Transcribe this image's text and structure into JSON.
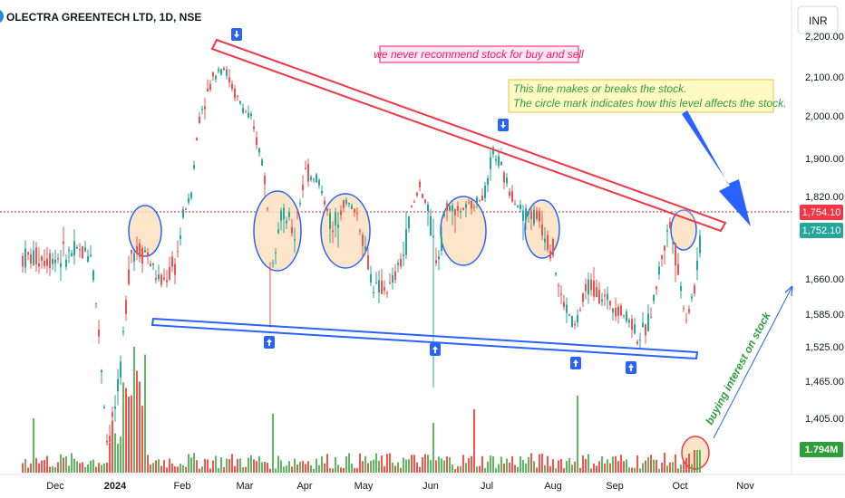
{
  "header": {
    "symbol_label": "OLECTRA GREENTECH LTD, 1D, NSE"
  },
  "currency_label": "INR",
  "annotations": {
    "disclaimer": "we never recommend stock for buy and sell",
    "note_line1": "This line makes or breaks the stock.",
    "note_line2": "The circle mark indicates how this level affects the stock.",
    "buying_interest": "buying interest on stock"
  },
  "badges": {
    "resistance_price": "1,754.10",
    "last_price": "1,752.10",
    "volume": "1.794M"
  },
  "colors": {
    "up": "#26a69a",
    "down": "#ef5350",
    "vol_up": "#4caf50",
    "vol_down": "#f44336",
    "resistance": "#f23645",
    "support": "#2962ff",
    "circle_fill": "#fbe1bf",
    "note_bg": "#fff9c4"
  },
  "chart_data": {
    "type": "candlestick",
    "title": "OLECTRA GREENTECH LTD, 1D, NSE",
    "y_axis": {
      "ticks": [
        "2,200.00",
        "2,100.00",
        "2,000.00",
        "1,900.00",
        "1,820.00",
        "1,660.00",
        "1,585.00",
        "1,525.00",
        "1,465.00",
        "1,405.00"
      ],
      "ylim": [
        1360,
        2200
      ]
    },
    "x_axis": {
      "ticks": [
        "Dec",
        "2024",
        "Feb",
        "Mar",
        "Apr",
        "May",
        "Jun",
        "Jul",
        "Aug",
        "Sep",
        "Oct",
        "Nov"
      ]
    },
    "grid": false,
    "horizontal_level": 1754.1,
    "trendlines": [
      {
        "name": "resistance",
        "points": [
          [
            "2024-02-12",
            2165
          ],
          [
            "2024-10-18",
            1754
          ]
        ]
      },
      {
        "name": "support",
        "points": [
          [
            "2023-12-28",
            1572
          ],
          [
            "2024-10-14",
            1518
          ]
        ]
      }
    ],
    "price_path": [
      [
        "2023-12-01",
        1690
      ],
      [
        "2023-12-20",
        1700
      ],
      [
        "2023-12-28",
        1360
      ],
      [
        "2024-01-03",
        1460
      ],
      [
        "2024-01-08",
        1700
      ],
      [
        "2024-01-15",
        1700
      ],
      [
        "2024-01-22",
        1650
      ],
      [
        "2024-01-29",
        1680
      ],
      [
        "2024-02-05",
        1820
      ],
      [
        "2024-02-09",
        2000
      ],
      [
        "2024-02-16",
        2110
      ],
      [
        "2024-02-20",
        2130
      ],
      [
        "2024-02-26",
        2050
      ],
      [
        "2024-03-04",
        1990
      ],
      [
        "2024-03-11",
        1880
      ],
      [
        "2024-03-14",
        1680
      ],
      [
        "2024-03-20",
        1760
      ],
      [
        "2024-03-27",
        1720
      ],
      [
        "2024-04-01",
        1870
      ],
      [
        "2024-04-08",
        1860
      ],
      [
        "2024-04-15",
        1720
      ],
      [
        "2024-04-22",
        1800
      ],
      [
        "2024-04-29",
        1740
      ],
      [
        "2024-05-06",
        1640
      ],
      [
        "2024-05-13",
        1640
      ],
      [
        "2024-05-20",
        1700
      ],
      [
        "2024-05-27",
        1850
      ],
      [
        "2024-06-03",
        1700
      ],
      [
        "2024-06-05",
        1690
      ],
      [
        "2024-06-10",
        1780
      ],
      [
        "2024-06-17",
        1760
      ],
      [
        "2024-06-24",
        1790
      ],
      [
        "2024-07-01",
        1830
      ],
      [
        "2024-07-04",
        1920
      ],
      [
        "2024-07-10",
        1850
      ],
      [
        "2024-07-18",
        1760
      ],
      [
        "2024-07-25",
        1750
      ],
      [
        "2024-08-01",
        1700
      ],
      [
        "2024-08-05",
        1620
      ],
      [
        "2024-08-12",
        1560
      ],
      [
        "2024-08-19",
        1650
      ],
      [
        "2024-08-26",
        1620
      ],
      [
        "2024-09-02",
        1600
      ],
      [
        "2024-09-09",
        1570
      ],
      [
        "2024-09-12",
        1540
      ],
      [
        "2024-09-16",
        1560
      ],
      [
        "2024-09-23",
        1700
      ],
      [
        "2024-09-27",
        1740
      ],
      [
        "2024-10-01",
        1650
      ],
      [
        "2024-10-04",
        1580
      ],
      [
        "2024-10-08",
        1640
      ],
      [
        "2024-10-10",
        1700
      ],
      [
        "2024-10-14",
        1752
      ]
    ],
    "volume_bars": "green up-day and red down-day volume histogram along the bottom; spike in early January 2024; last bar 1.794M"
  }
}
